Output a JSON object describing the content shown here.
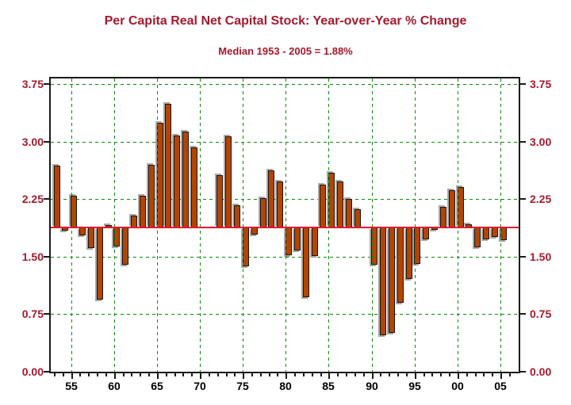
{
  "chart_data": {
    "type": "bar",
    "title": "Per Capita Real Net Capital Stock: Year-over-Year % Change",
    "subtitle": "Median 1953 - 2005 = 1.88%",
    "x": [
      1953,
      1954,
      1955,
      1956,
      1957,
      1958,
      1959,
      1960,
      1961,
      1962,
      1963,
      1964,
      1965,
      1966,
      1967,
      1968,
      1969,
      1970,
      1971,
      1972,
      1973,
      1974,
      1975,
      1976,
      1977,
      1978,
      1979,
      1980,
      1981,
      1982,
      1983,
      1984,
      1985,
      1986,
      1987,
      1988,
      1989,
      1990,
      1991,
      1992,
      1993,
      1994,
      1995,
      1996,
      1997,
      1998,
      1999,
      2000,
      2001,
      2002,
      2003,
      2004,
      2005
    ],
    "values": [
      2.69,
      1.84,
      2.29,
      1.78,
      1.61,
      0.94,
      1.91,
      1.63,
      1.39,
      2.04,
      2.29,
      2.7,
      3.24,
      3.49,
      3.08,
      3.13,
      2.92,
      1.88,
      1.88,
      2.56,
      3.07,
      2.17,
      1.37,
      1.79,
      2.26,
      2.62,
      2.48,
      1.52,
      1.58,
      0.97,
      1.51,
      2.44,
      2.59,
      2.48,
      2.25,
      2.12,
      1.88,
      1.39,
      0.48,
      0.51,
      0.9,
      1.21,
      1.4,
      1.73,
      1.85,
      2.15,
      2.37,
      2.41,
      1.92,
      1.62,
      1.73,
      1.76,
      1.71
    ],
    "baseline": 1.88,
    "ylim": [
      0.0,
      3.83
    ],
    "y_ticks": [
      0.0,
      0.75,
      1.5,
      2.25,
      3.0,
      3.75
    ],
    "y_tick_labels": [
      "0.00",
      "0.75",
      "1.50",
      "2.25",
      "3.00",
      "3.75"
    ],
    "x_major_tick_years": [
      1955,
      1960,
      1965,
      1970,
      1975,
      1980,
      1985,
      1990,
      1995,
      2000,
      2005
    ],
    "x_tick_labels": [
      "55",
      "60",
      "65",
      "70",
      "75",
      "80",
      "85",
      "90",
      "95",
      "00",
      "05"
    ],
    "grid": true,
    "legend": "none",
    "colors": {
      "bar_fill": "#B34500",
      "bar_border": "#161616",
      "bar_shadow": "#A8A8A8",
      "grid_green": "#0B8A0B",
      "median_red": "#E8112D",
      "axis_black": "#1A1A1A",
      "label_red": "#A6192E",
      "background": "#FFFFFF"
    }
  }
}
